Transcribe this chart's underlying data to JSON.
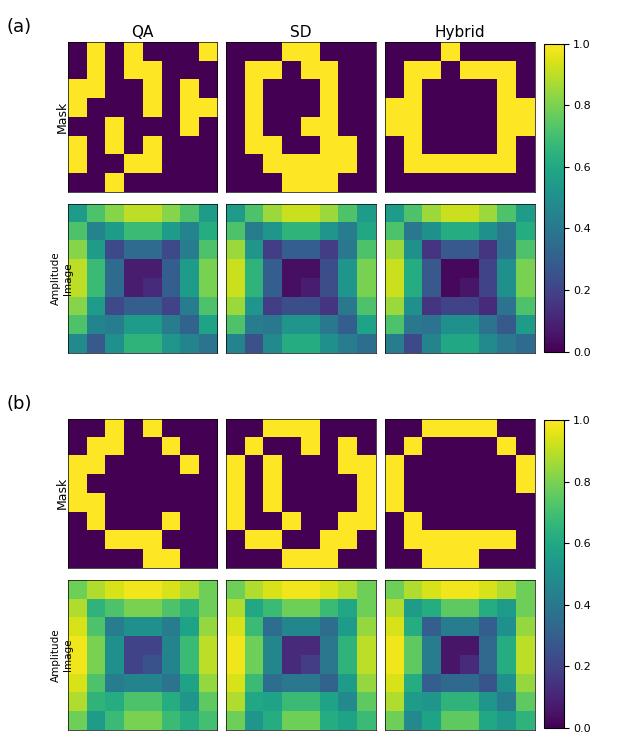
{
  "col_titles": [
    "QA",
    "SD",
    "Hybrid"
  ],
  "group_labels": [
    "(a)",
    "(b)"
  ],
  "colormap": "viridis",
  "mask_a_qa": [
    [
      0,
      1,
      0,
      1,
      0,
      0,
      0,
      1
    ],
    [
      0,
      1,
      0,
      1,
      1,
      0,
      0,
      0
    ],
    [
      1,
      1,
      0,
      0,
      1,
      0,
      1,
      0
    ],
    [
      1,
      0,
      0,
      0,
      1,
      0,
      1,
      1
    ],
    [
      0,
      0,
      1,
      0,
      0,
      0,
      1,
      0
    ],
    [
      1,
      0,
      1,
      0,
      1,
      0,
      0,
      0
    ],
    [
      1,
      0,
      0,
      1,
      1,
      0,
      0,
      0
    ],
    [
      0,
      0,
      1,
      0,
      0,
      0,
      0,
      0
    ]
  ],
  "mask_a_sd": [
    [
      0,
      0,
      0,
      1,
      1,
      0,
      0,
      0
    ],
    [
      0,
      1,
      1,
      0,
      1,
      1,
      0,
      0
    ],
    [
      0,
      1,
      0,
      0,
      0,
      1,
      0,
      0
    ],
    [
      0,
      1,
      0,
      0,
      0,
      1,
      0,
      0
    ],
    [
      0,
      1,
      0,
      0,
      1,
      1,
      0,
      0
    ],
    [
      0,
      1,
      1,
      0,
      0,
      1,
      1,
      0
    ],
    [
      0,
      0,
      1,
      1,
      1,
      1,
      1,
      0
    ],
    [
      0,
      0,
      0,
      1,
      1,
      1,
      0,
      0
    ]
  ],
  "mask_a_hybrid": [
    [
      0,
      0,
      0,
      1,
      0,
      0,
      0,
      0
    ],
    [
      0,
      1,
      1,
      0,
      1,
      1,
      1,
      0
    ],
    [
      0,
      1,
      0,
      0,
      0,
      0,
      1,
      0
    ],
    [
      1,
      1,
      0,
      0,
      0,
      0,
      1,
      1
    ],
    [
      1,
      1,
      0,
      0,
      0,
      0,
      1,
      1
    ],
    [
      0,
      1,
      0,
      0,
      0,
      0,
      1,
      0
    ],
    [
      0,
      1,
      1,
      1,
      1,
      1,
      1,
      0
    ],
    [
      0,
      0,
      0,
      0,
      0,
      0,
      0,
      0
    ]
  ],
  "amp_a_qa": [
    [
      0.55,
      0.72,
      0.82,
      0.9,
      0.9,
      0.82,
      0.72,
      0.55
    ],
    [
      0.72,
      0.45,
      0.55,
      0.68,
      0.68,
      0.55,
      0.45,
      0.62
    ],
    [
      0.82,
      0.55,
      0.22,
      0.35,
      0.35,
      0.22,
      0.42,
      0.72
    ],
    [
      0.9,
      0.68,
      0.35,
      0.08,
      0.08,
      0.3,
      0.55,
      0.8
    ],
    [
      0.9,
      0.68,
      0.35,
      0.08,
      0.12,
      0.3,
      0.55,
      0.8
    ],
    [
      0.82,
      0.55,
      0.22,
      0.3,
      0.3,
      0.2,
      0.42,
      0.72
    ],
    [
      0.72,
      0.45,
      0.42,
      0.55,
      0.55,
      0.42,
      0.32,
      0.58
    ],
    [
      0.48,
      0.28,
      0.5,
      0.65,
      0.65,
      0.52,
      0.45,
      0.38
    ]
  ],
  "amp_a_sd": [
    [
      0.55,
      0.72,
      0.85,
      0.92,
      0.92,
      0.85,
      0.72,
      0.55
    ],
    [
      0.72,
      0.42,
      0.52,
      0.65,
      0.65,
      0.52,
      0.42,
      0.6
    ],
    [
      0.85,
      0.52,
      0.18,
      0.3,
      0.3,
      0.18,
      0.4,
      0.72
    ],
    [
      0.92,
      0.65,
      0.3,
      0.04,
      0.04,
      0.24,
      0.52,
      0.8
    ],
    [
      0.92,
      0.65,
      0.3,
      0.04,
      0.08,
      0.24,
      0.52,
      0.8
    ],
    [
      0.85,
      0.52,
      0.18,
      0.24,
      0.24,
      0.15,
      0.4,
      0.72
    ],
    [
      0.72,
      0.42,
      0.4,
      0.52,
      0.52,
      0.4,
      0.3,
      0.58
    ],
    [
      0.45,
      0.25,
      0.48,
      0.62,
      0.62,
      0.5,
      0.42,
      0.36
    ]
  ],
  "amp_a_hybrid": [
    [
      0.55,
      0.72,
      0.85,
      0.92,
      0.92,
      0.85,
      0.72,
      0.55
    ],
    [
      0.72,
      0.4,
      0.5,
      0.62,
      0.62,
      0.5,
      0.4,
      0.62
    ],
    [
      0.85,
      0.5,
      0.15,
      0.28,
      0.28,
      0.15,
      0.38,
      0.72
    ],
    [
      0.92,
      0.62,
      0.28,
      0.02,
      0.02,
      0.2,
      0.5,
      0.8
    ],
    [
      0.92,
      0.62,
      0.28,
      0.02,
      0.06,
      0.2,
      0.5,
      0.8
    ],
    [
      0.85,
      0.5,
      0.15,
      0.2,
      0.2,
      0.12,
      0.38,
      0.72
    ],
    [
      0.72,
      0.4,
      0.38,
      0.5,
      0.5,
      0.38,
      0.28,
      0.55
    ],
    [
      0.42,
      0.22,
      0.45,
      0.6,
      0.6,
      0.48,
      0.4,
      0.35
    ]
  ],
  "mask_b_qa": [
    [
      0,
      0,
      1,
      0,
      1,
      0,
      0,
      0
    ],
    [
      0,
      1,
      1,
      0,
      0,
      1,
      0,
      0
    ],
    [
      1,
      1,
      0,
      0,
      0,
      0,
      1,
      0
    ],
    [
      1,
      0,
      0,
      0,
      0,
      0,
      0,
      0
    ],
    [
      1,
      1,
      0,
      0,
      0,
      0,
      0,
      0
    ],
    [
      0,
      1,
      0,
      0,
      0,
      1,
      0,
      0
    ],
    [
      0,
      0,
      1,
      1,
      1,
      0,
      0,
      0
    ],
    [
      0,
      0,
      0,
      0,
      1,
      1,
      0,
      0
    ]
  ],
  "mask_b_sd": [
    [
      0,
      0,
      1,
      1,
      1,
      0,
      0,
      0
    ],
    [
      0,
      1,
      0,
      0,
      1,
      0,
      1,
      0
    ],
    [
      1,
      0,
      1,
      0,
      0,
      0,
      1,
      1
    ],
    [
      1,
      0,
      1,
      0,
      0,
      0,
      0,
      1
    ],
    [
      1,
      0,
      1,
      0,
      0,
      0,
      0,
      1
    ],
    [
      1,
      0,
      0,
      1,
      0,
      0,
      1,
      1
    ],
    [
      0,
      1,
      1,
      0,
      0,
      1,
      1,
      0
    ],
    [
      0,
      0,
      0,
      1,
      1,
      1,
      0,
      0
    ]
  ],
  "mask_b_hybrid": [
    [
      0,
      0,
      1,
      1,
      1,
      1,
      0,
      0
    ],
    [
      0,
      1,
      0,
      0,
      0,
      0,
      1,
      0
    ],
    [
      1,
      0,
      0,
      0,
      0,
      0,
      0,
      1
    ],
    [
      1,
      0,
      0,
      0,
      0,
      0,
      0,
      1
    ],
    [
      1,
      0,
      0,
      0,
      0,
      0,
      0,
      0
    ],
    [
      0,
      1,
      0,
      0,
      0,
      0,
      0,
      0
    ],
    [
      0,
      1,
      1,
      1,
      1,
      1,
      1,
      0
    ],
    [
      0,
      0,
      1,
      1,
      1,
      0,
      0,
      0
    ]
  ],
  "amp_b_qa": [
    [
      0.78,
      0.88,
      0.94,
      0.98,
      0.98,
      0.94,
      0.88,
      0.78
    ],
    [
      0.88,
      0.65,
      0.72,
      0.8,
      0.8,
      0.72,
      0.65,
      0.78
    ],
    [
      0.94,
      0.72,
      0.42,
      0.5,
      0.5,
      0.42,
      0.58,
      0.84
    ],
    [
      0.98,
      0.8,
      0.5,
      0.2,
      0.2,
      0.45,
      0.68,
      0.9
    ],
    [
      0.98,
      0.8,
      0.5,
      0.2,
      0.25,
      0.45,
      0.68,
      0.9
    ],
    [
      0.94,
      0.72,
      0.42,
      0.45,
      0.45,
      0.38,
      0.58,
      0.84
    ],
    [
      0.88,
      0.65,
      0.62,
      0.72,
      0.72,
      0.62,
      0.52,
      0.75
    ],
    [
      0.78,
      0.55,
      0.68,
      0.8,
      0.8,
      0.68,
      0.62,
      0.7
    ]
  ],
  "amp_b_sd": [
    [
      0.78,
      0.88,
      0.94,
      0.98,
      0.98,
      0.94,
      0.88,
      0.78
    ],
    [
      0.88,
      0.6,
      0.68,
      0.78,
      0.78,
      0.68,
      0.6,
      0.78
    ],
    [
      0.94,
      0.68,
      0.36,
      0.46,
      0.46,
      0.36,
      0.55,
      0.84
    ],
    [
      0.98,
      0.78,
      0.46,
      0.12,
      0.12,
      0.4,
      0.65,
      0.9
    ],
    [
      0.98,
      0.78,
      0.46,
      0.12,
      0.18,
      0.4,
      0.65,
      0.9
    ],
    [
      0.94,
      0.68,
      0.36,
      0.4,
      0.4,
      0.32,
      0.55,
      0.84
    ],
    [
      0.88,
      0.6,
      0.58,
      0.68,
      0.68,
      0.58,
      0.48,
      0.75
    ],
    [
      0.78,
      0.52,
      0.62,
      0.78,
      0.78,
      0.62,
      0.58,
      0.68
    ]
  ],
  "amp_b_hybrid": [
    [
      0.78,
      0.88,
      0.94,
      0.98,
      0.98,
      0.94,
      0.88,
      0.78
    ],
    [
      0.88,
      0.55,
      0.62,
      0.75,
      0.75,
      0.62,
      0.55,
      0.78
    ],
    [
      0.94,
      0.62,
      0.3,
      0.42,
      0.42,
      0.3,
      0.5,
      0.84
    ],
    [
      0.98,
      0.75,
      0.42,
      0.06,
      0.06,
      0.34,
      0.62,
      0.9
    ],
    [
      0.98,
      0.75,
      0.42,
      0.06,
      0.12,
      0.34,
      0.62,
      0.9
    ],
    [
      0.94,
      0.62,
      0.3,
      0.34,
      0.34,
      0.26,
      0.5,
      0.84
    ],
    [
      0.88,
      0.55,
      0.52,
      0.65,
      0.65,
      0.52,
      0.42,
      0.75
    ],
    [
      0.78,
      0.48,
      0.58,
      0.75,
      0.75,
      0.6,
      0.54,
      0.65
    ]
  ]
}
